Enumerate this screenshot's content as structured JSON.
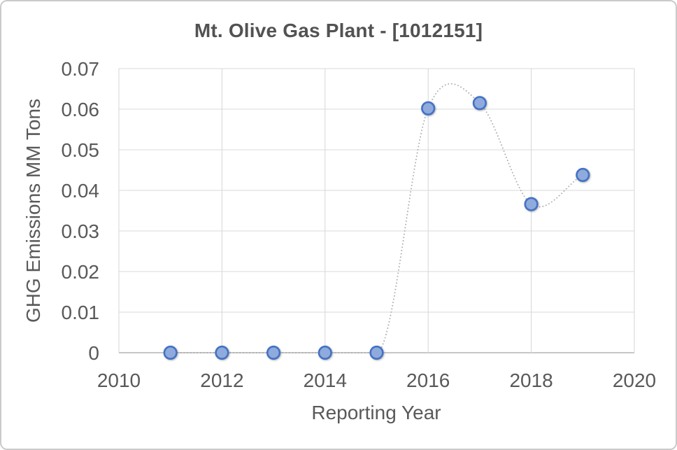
{
  "chart_data": {
    "type": "scatter",
    "title": "Mt. Olive Gas Plant - [1012151]",
    "xlabel": "Reporting Year",
    "ylabel": "GHG Emissions MM Tons",
    "series_name": "GHG Emissions MM Tons",
    "x": [
      2011,
      2012,
      2013,
      2014,
      2015,
      2016,
      2017,
      2018,
      2019
    ],
    "y": [
      0,
      0,
      0,
      0,
      0,
      0.0602,
      0.0615,
      0.0366,
      0.0438
    ],
    "xlim": [
      2010,
      2020
    ],
    "ylim": [
      0,
      0.07
    ],
    "x_ticks": [
      2010,
      2012,
      2014,
      2016,
      2018,
      2020
    ],
    "y_ticks": [
      0,
      0.01,
      0.02,
      0.03,
      0.04,
      0.05,
      0.06,
      0.07
    ],
    "y_tick_labels": [
      "0",
      "0.01",
      "0.02",
      "0.03",
      "0.04",
      "0.05",
      "0.06",
      "0.07"
    ],
    "grid": true,
    "legend_position": "none",
    "line_style": "smooth-dotted",
    "colors": {
      "marker_fill": "#8FAADC",
      "marker_border": "#4472C4",
      "line": "#ABABAB",
      "gridline": "#D9D9D9",
      "axis_line": "#BFBFBF",
      "text": "#595959",
      "title_text": "#525252",
      "chart_border": "#CBCBCB"
    }
  }
}
